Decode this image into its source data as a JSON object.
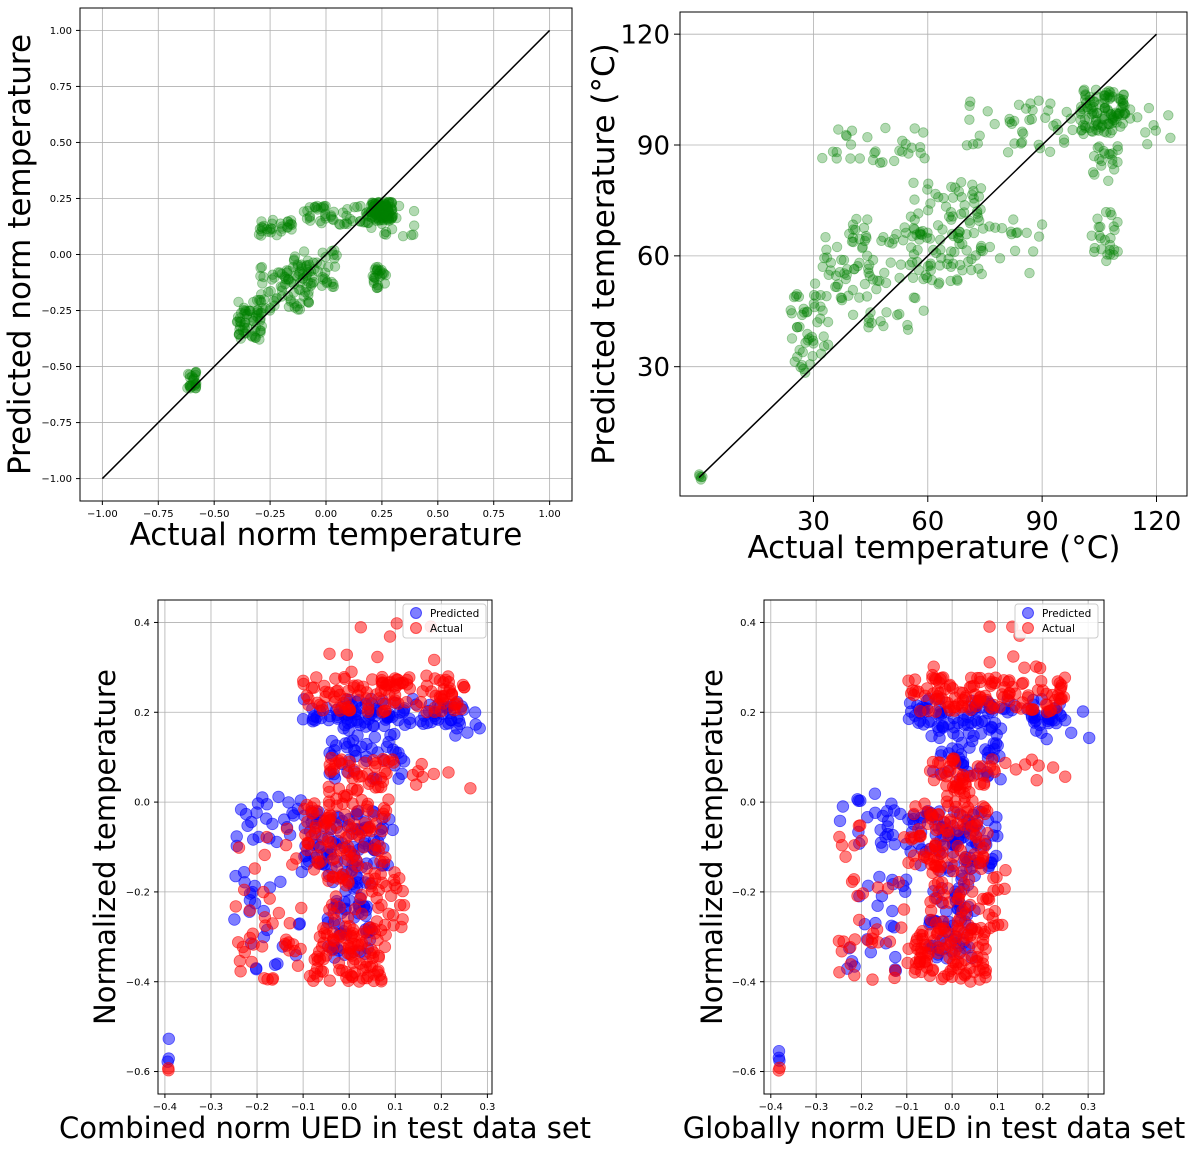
{
  "chart_data": [
    {
      "id": "panel-a",
      "type": "scatter",
      "xlabel": "Actual norm temperature",
      "ylabel": "Predicted norm temperature",
      "xlim": [
        -1.1,
        1.1
      ],
      "ylim": [
        -1.1,
        1.1
      ],
      "xticks": [
        -1.0,
        -0.75,
        -0.5,
        -0.25,
        0.0,
        0.25,
        0.5,
        0.75,
        1.0
      ],
      "yticks": [
        -1.0,
        -0.75,
        -0.5,
        -0.25,
        0.0,
        0.25,
        0.5,
        0.75,
        1.0
      ],
      "xtick_labels": [
        "−1.00",
        "−0.75",
        "−0.50",
        "−0.25",
        "0.00",
        "0.25",
        "0.50",
        "0.75",
        "1.00"
      ],
      "ytick_labels": [
        "−1.00",
        "−0.75",
        "−0.50",
        "−0.25",
        "0.00",
        "0.25",
        "0.50",
        "0.75",
        "1.00"
      ],
      "grid": true,
      "reference_line": [
        [
          -1.0,
          -1.0
        ],
        [
          1.0,
          1.0
        ]
      ],
      "series": [
        {
          "color": "#008000",
          "alpha": 0.3,
          "clusters": [
            {
              "n": 25,
              "x": [
                -0.62,
                -0.58
              ],
              "y": [
                -0.6,
                -0.52
              ]
            },
            {
              "n": 60,
              "x": [
                -0.4,
                -0.28
              ],
              "y": [
                -0.38,
                -0.2
              ]
            },
            {
              "n": 70,
              "x": [
                -0.3,
                -0.05
              ],
              "y": [
                -0.25,
                -0.05
              ]
            },
            {
              "n": 50,
              "x": [
                -0.15,
                0.05
              ],
              "y": [
                -0.15,
                0.02
              ]
            },
            {
              "n": 30,
              "x": [
                -0.3,
                -0.15
              ],
              "y": [
                0.08,
                0.17
              ]
            },
            {
              "n": 50,
              "x": [
                -0.1,
                0.2
              ],
              "y": [
                0.12,
                0.22
              ]
            },
            {
              "n": 90,
              "x": [
                0.2,
                0.3
              ],
              "y": [
                0.15,
                0.24
              ]
            },
            {
              "n": 25,
              "x": [
                0.2,
                0.27
              ],
              "y": [
                -0.15,
                -0.05
              ]
            },
            {
              "n": 20,
              "x": [
                0.15,
                0.42
              ],
              "y": [
                0.08,
                0.22
              ]
            }
          ]
        }
      ]
    },
    {
      "id": "panel-b",
      "type": "scatter",
      "xlabel": "Actual temperature (°C)",
      "ylabel": "Predicted temperature (°C)",
      "xlim": [
        -5,
        128
      ],
      "ylim": [
        -5,
        126
      ],
      "xticks": [
        30,
        60,
        90,
        120
      ],
      "yticks": [
        30,
        60,
        90,
        120
      ],
      "xtick_labels": [
        "30",
        "60",
        "90",
        "120"
      ],
      "ytick_labels": [
        "30",
        "60",
        "90",
        "120"
      ],
      "grid": true,
      "reference_line": [
        [
          0,
          0
        ],
        [
          120,
          120
        ]
      ],
      "series": [
        {
          "color": "#008000",
          "alpha": 0.3,
          "clusters": [
            {
              "n": 5,
              "x": [
                0,
                1
              ],
              "y": [
                -2,
                4
              ]
            },
            {
              "n": 45,
              "x": [
                24,
                34
              ],
              "y": [
                28,
                50
              ]
            },
            {
              "n": 45,
              "x": [
                30,
                45
              ],
              "y": [
                48,
                70
              ]
            },
            {
              "n": 60,
              "x": [
                40,
                60
              ],
              "y": [
                40,
                68
              ]
            },
            {
              "n": 80,
              "x": [
                55,
                75
              ],
              "y": [
                52,
                80
              ]
            },
            {
              "n": 35,
              "x": [
                65,
                90
              ],
              "y": [
                55,
                72
              ]
            },
            {
              "n": 30,
              "x": [
                32,
                60
              ],
              "y": [
                85,
                95
              ]
            },
            {
              "n": 40,
              "x": [
                70,
                98
              ],
              "y": [
                88,
                102
              ]
            },
            {
              "n": 110,
              "x": [
                100,
                112
              ],
              "y": [
                93,
                105
              ]
            },
            {
              "n": 25,
              "x": [
                103,
                110
              ],
              "y": [
                58,
                72
              ]
            },
            {
              "n": 20,
              "x": [
                103,
                110
              ],
              "y": [
                78,
                90
              ]
            },
            {
              "n": 10,
              "x": [
                112,
                126
              ],
              "y": [
                90,
                104
              ]
            }
          ]
        }
      ]
    },
    {
      "id": "panel-c",
      "type": "scatter",
      "xlabel": "Combined norm UED in test data set",
      "ylabel": "Normalized temperature",
      "xlim": [
        -0.415,
        0.31
      ],
      "ylim": [
        -0.65,
        0.45
      ],
      "xticks": [
        -0.4,
        -0.3,
        -0.2,
        -0.1,
        0.0,
        0.1,
        0.2,
        0.3
      ],
      "yticks": [
        -0.6,
        -0.4,
        -0.2,
        0.0,
        0.2,
        0.4
      ],
      "xtick_labels": [
        "−0.4",
        "−0.3",
        "−0.2",
        "−0.1",
        "0.0",
        "0.1",
        "0.2",
        "0.3"
      ],
      "ytick_labels": [
        "−0.6",
        "−0.4",
        "−0.2",
        "0.0",
        "0.2",
        "0.4"
      ],
      "grid": true,
      "legend": {
        "position": "upper-right",
        "entries": [
          {
            "label": "Predicted",
            "color": "#0000ff"
          },
          {
            "label": "Actual",
            "color": "#ff0000"
          }
        ]
      },
      "series": [
        {
          "name": "Predicted",
          "color": "#0000ff",
          "alpha": 0.5,
          "clusters": [
            {
              "n": 3,
              "x": [
                -0.395,
                -0.39
              ],
              "y": [
                -0.6,
                -0.52
              ]
            },
            {
              "n": 25,
              "x": [
                -0.25,
                -0.1
              ],
              "y": [
                -0.38,
                -0.15
              ]
            },
            {
              "n": 25,
              "x": [
                -0.25,
                -0.1
              ],
              "y": [
                -0.1,
                0.02
              ]
            },
            {
              "n": 90,
              "x": [
                -0.1,
                0.1
              ],
              "y": [
                -0.15,
                -0.02
              ]
            },
            {
              "n": 60,
              "x": [
                -0.05,
                0.05
              ],
              "y": [
                -0.35,
                -0.15
              ]
            },
            {
              "n": 60,
              "x": [
                -0.05,
                0.12
              ],
              "y": [
                0.05,
                0.2
              ]
            },
            {
              "n": 80,
              "x": [
                -0.1,
                0.25
              ],
              "y": [
                0.17,
                0.23
              ]
            },
            {
              "n": 12,
              "x": [
                0.18,
                0.29
              ],
              "y": [
                0.14,
                0.22
              ]
            }
          ]
        },
        {
          "name": "Actual",
          "color": "#ff0000",
          "alpha": 0.5,
          "clusters": [
            {
              "n": 2,
              "x": [
                -0.395,
                -0.39
              ],
              "y": [
                -0.6,
                -0.59
              ]
            },
            {
              "n": 30,
              "x": [
                -0.25,
                -0.05
              ],
              "y": [
                -0.4,
                -0.3
              ]
            },
            {
              "n": 80,
              "x": [
                -0.08,
                0.08
              ],
              "y": [
                -0.4,
                -0.28
              ]
            },
            {
              "n": 60,
              "x": [
                -0.05,
                0.12
              ],
              "y": [
                -0.3,
                -0.15
              ]
            },
            {
              "n": 90,
              "x": [
                -0.1,
                0.08
              ],
              "y": [
                -0.15,
                0.0
              ]
            },
            {
              "n": 50,
              "x": [
                -0.05,
                0.1
              ],
              "y": [
                0.0,
                0.1
              ]
            },
            {
              "n": 20,
              "x": [
                -0.25,
                -0.1
              ],
              "y": [
                -0.3,
                -0.05
              ]
            },
            {
              "n": 120,
              "x": [
                -0.1,
                0.25
              ],
              "y": [
                0.2,
                0.28
              ]
            },
            {
              "n": 10,
              "x": [
                -0.05,
                0.2
              ],
              "y": [
                0.28,
                0.4
              ]
            },
            {
              "n": 8,
              "x": [
                0.1,
                0.29
              ],
              "y": [
                0.0,
                0.1
              ]
            }
          ]
        }
      ]
    },
    {
      "id": "panel-d",
      "type": "scatter",
      "xlabel": "Globally norm UED in test data set",
      "ylabel": "Normalized temperature",
      "xlim": [
        -0.415,
        0.335
      ],
      "ylim": [
        -0.65,
        0.45
      ],
      "xticks": [
        -0.4,
        -0.3,
        -0.2,
        -0.1,
        0.0,
        0.1,
        0.2,
        0.3
      ],
      "yticks": [
        -0.6,
        -0.4,
        -0.2,
        0.0,
        0.2,
        0.4
      ],
      "xtick_labels": [
        "−0.4",
        "−0.3",
        "−0.2",
        "−0.1",
        "0.0",
        "0.1",
        "0.2",
        "0.3"
      ],
      "ytick_labels": [
        "−0.6",
        "−0.4",
        "−0.2",
        "0.0",
        "0.2",
        "0.4"
      ],
      "grid": true,
      "legend": {
        "position": "upper-right",
        "entries": [
          {
            "label": "Predicted",
            "color": "#0000ff"
          },
          {
            "label": "Actual",
            "color": "#ff0000"
          }
        ]
      },
      "series": [
        {
          "name": "Predicted",
          "color": "#0000ff",
          "alpha": 0.5,
          "clusters": [
            {
              "n": 3,
              "x": [
                -0.385,
                -0.38
              ],
              "y": [
                -0.6,
                -0.52
              ]
            },
            {
              "n": 25,
              "x": [
                -0.25,
                -0.1
              ],
              "y": [
                -0.38,
                -0.15
              ]
            },
            {
              "n": 25,
              "x": [
                -0.25,
                -0.1
              ],
              "y": [
                -0.1,
                0.02
              ]
            },
            {
              "n": 90,
              "x": [
                -0.1,
                0.1
              ],
              "y": [
                -0.15,
                -0.02
              ]
            },
            {
              "n": 60,
              "x": [
                -0.05,
                0.05
              ],
              "y": [
                -0.35,
                -0.15
              ]
            },
            {
              "n": 60,
              "x": [
                -0.05,
                0.12
              ],
              "y": [
                0.05,
                0.2
              ]
            },
            {
              "n": 80,
              "x": [
                -0.1,
                0.25
              ],
              "y": [
                0.17,
                0.23
              ]
            },
            {
              "n": 12,
              "x": [
                0.18,
                0.31
              ],
              "y": [
                0.14,
                0.22
              ]
            }
          ]
        },
        {
          "name": "Actual",
          "color": "#ff0000",
          "alpha": 0.5,
          "clusters": [
            {
              "n": 2,
              "x": [
                -0.385,
                -0.38
              ],
              "y": [
                -0.6,
                -0.59
              ]
            },
            {
              "n": 30,
              "x": [
                -0.25,
                -0.05
              ],
              "y": [
                -0.4,
                -0.3
              ]
            },
            {
              "n": 80,
              "x": [
                -0.08,
                0.08
              ],
              "y": [
                -0.4,
                -0.28
              ]
            },
            {
              "n": 60,
              "x": [
                -0.05,
                0.12
              ],
              "y": [
                -0.3,
                -0.15
              ]
            },
            {
              "n": 90,
              "x": [
                -0.1,
                0.08
              ],
              "y": [
                -0.15,
                0.0
              ]
            },
            {
              "n": 50,
              "x": [
                -0.05,
                0.1
              ],
              "y": [
                0.0,
                0.1
              ]
            },
            {
              "n": 20,
              "x": [
                -0.25,
                -0.1
              ],
              "y": [
                -0.3,
                -0.05
              ]
            },
            {
              "n": 120,
              "x": [
                -0.1,
                0.25
              ],
              "y": [
                0.2,
                0.28
              ]
            },
            {
              "n": 10,
              "x": [
                -0.05,
                0.2
              ],
              "y": [
                0.28,
                0.4
              ]
            },
            {
              "n": 8,
              "x": [
                0.1,
                0.31
              ],
              "y": [
                0.0,
                0.1
              ]
            }
          ]
        }
      ]
    }
  ]
}
